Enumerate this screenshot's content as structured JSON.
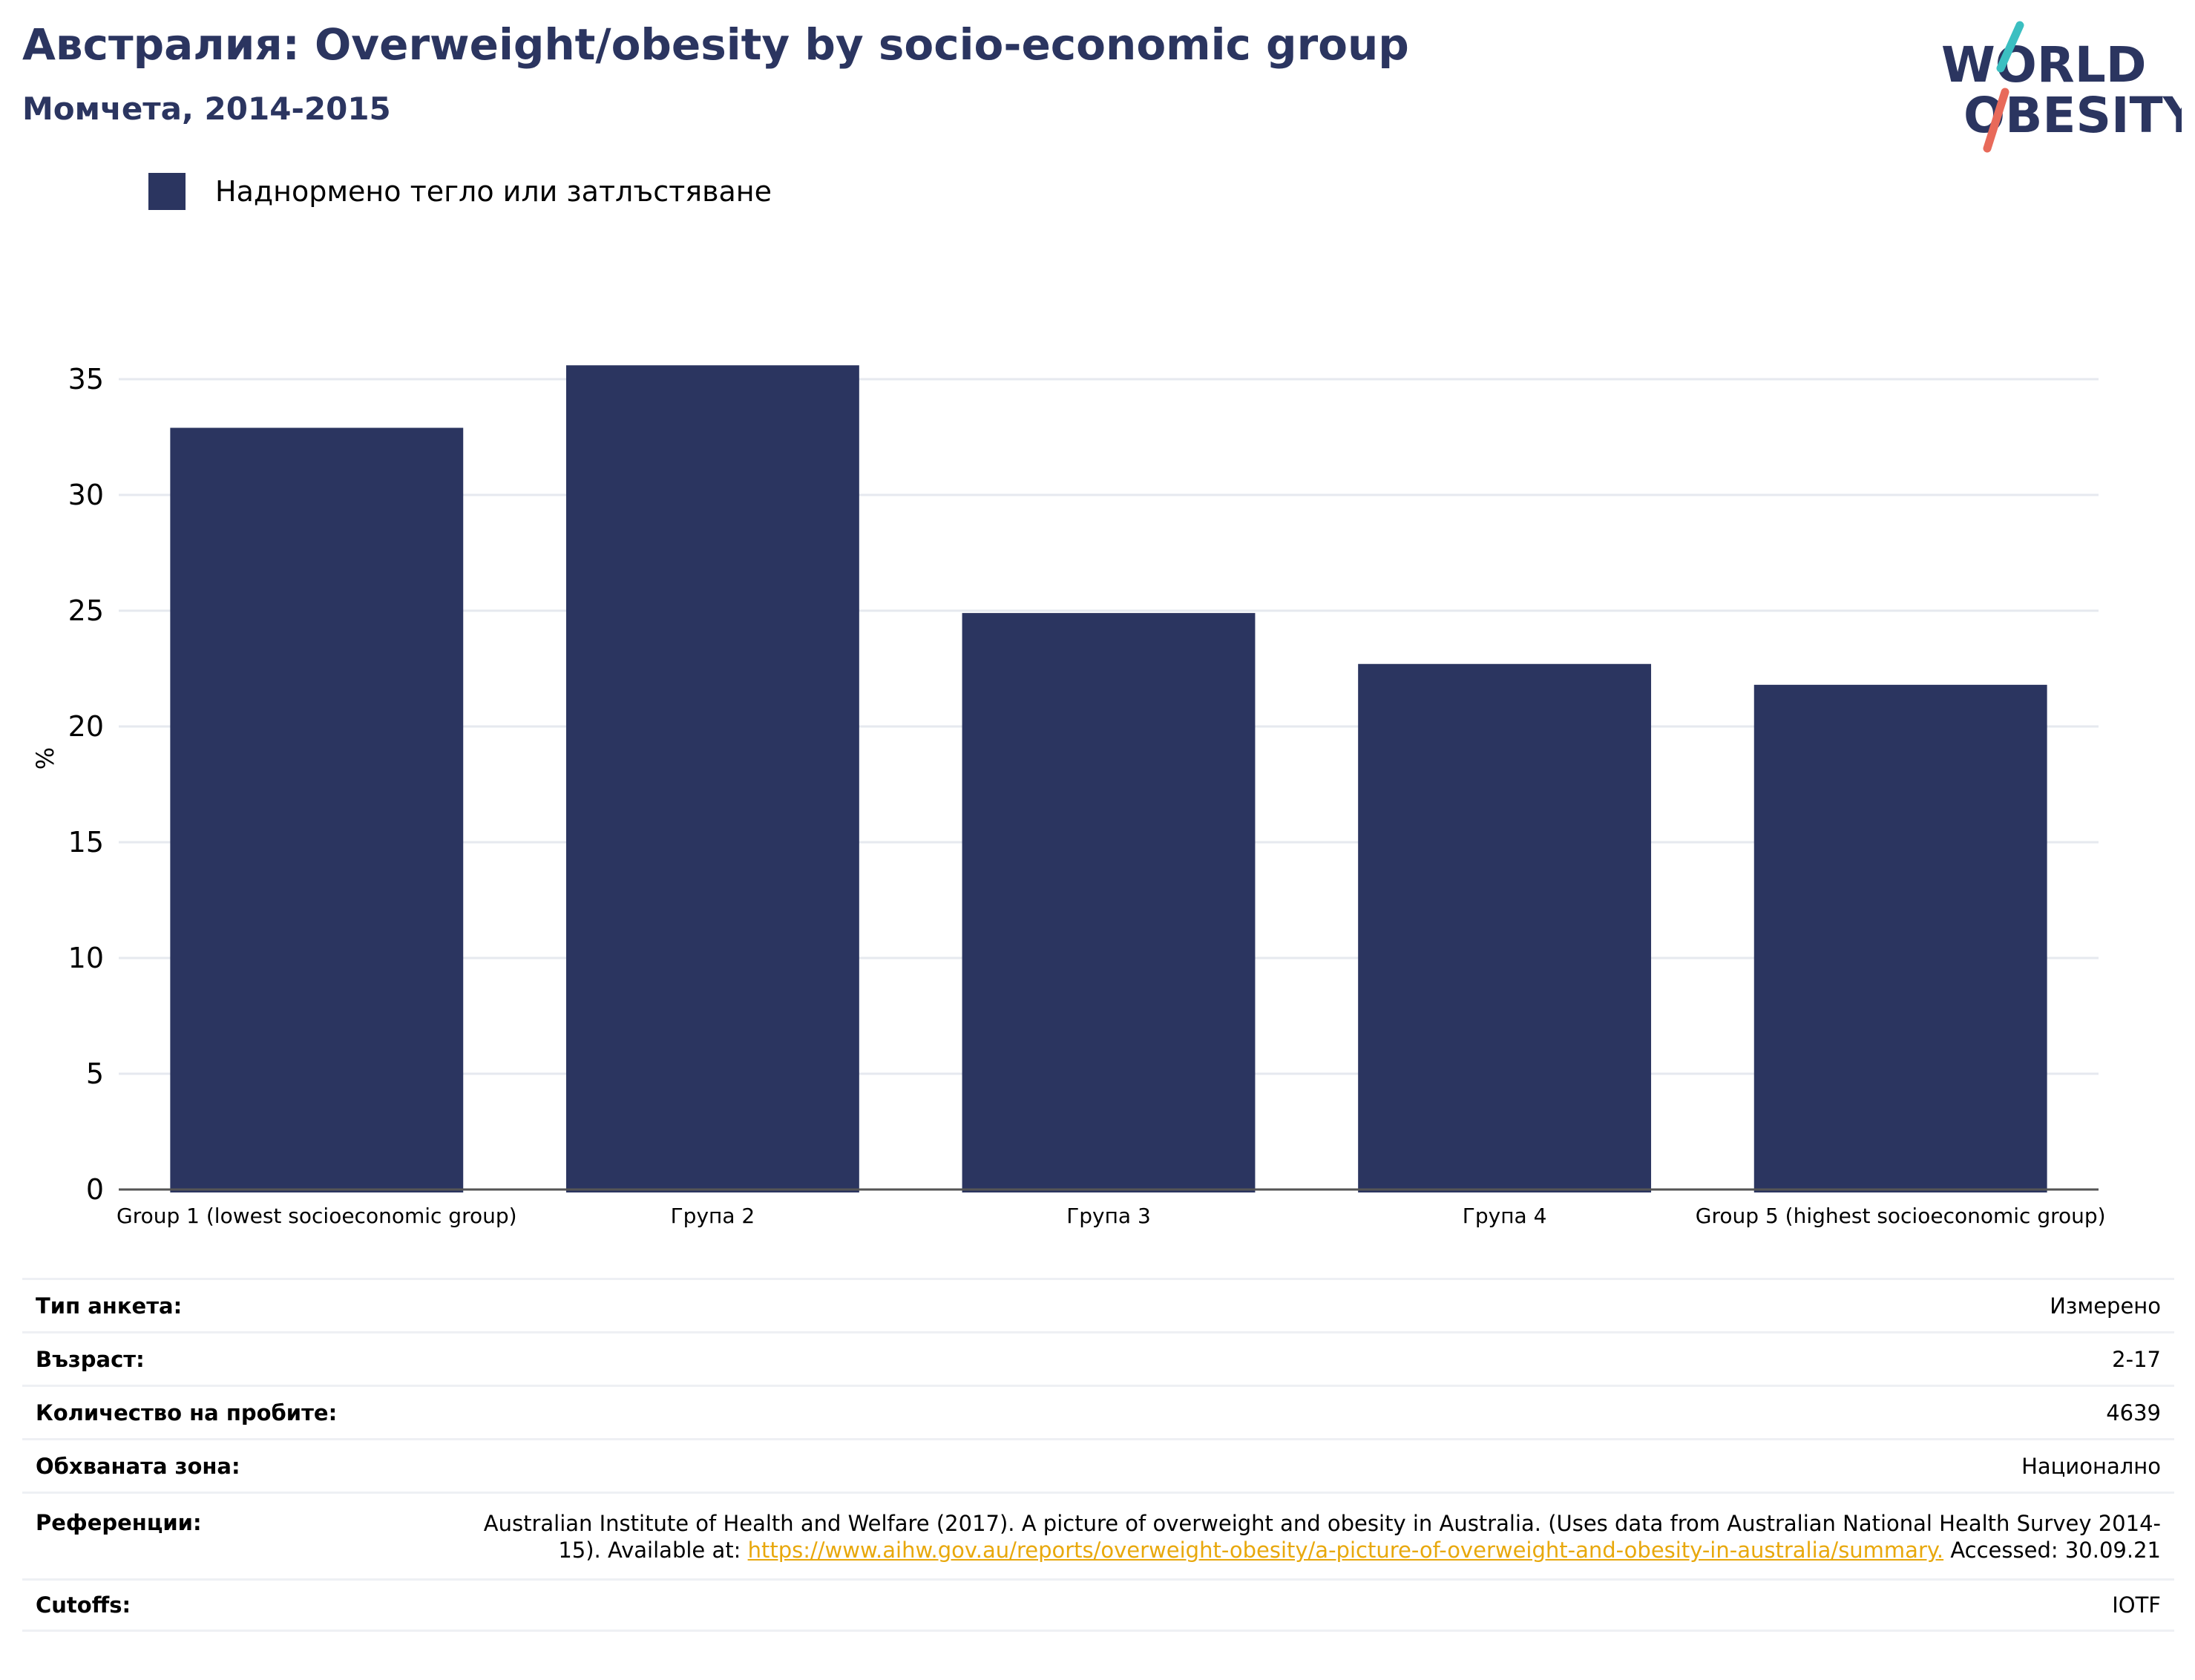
{
  "header": {
    "title": "Австралия: Overweight/obesity by socio-economic group",
    "subtitle": "Момчета, 2014-2015"
  },
  "logo": {
    "line1": "WORLD",
    "line2": "OBESITY"
  },
  "colors": {
    "bar": "#2b3560",
    "grid": "#e6e9ef",
    "axis": "#555555",
    "link": "#e8a80c",
    "logo_teal": "#3bbfc1",
    "logo_coral": "#e86a5a"
  },
  "chart_data": {
    "type": "bar",
    "categories": [
      "Group 1 (lowest socioeconomic group)",
      "Група 2",
      "Група 3",
      "Група 4",
      "Group 5 (highest socioeconomic group)"
    ],
    "series": [
      {
        "name": "Наднормено тегло или затлъстяване",
        "values": [
          32.9,
          35.6,
          24.9,
          22.7,
          21.8
        ]
      }
    ],
    "ylabel": "%",
    "ylim": [
      0,
      35
    ],
    "yticks": [
      0,
      5,
      10,
      15,
      20,
      25,
      30,
      35
    ],
    "grid": true,
    "legend": "top-left"
  },
  "details": [
    {
      "label": "Тип анкета:",
      "value": "Измерено"
    },
    {
      "label": "Възраст:",
      "value": "2-17"
    },
    {
      "label": "Количество на пробите:",
      "value": "4639"
    },
    {
      "label": "Обхваната зона:",
      "value": "Национално"
    },
    {
      "label": "Референции:",
      "value_pre": "Australian Institute of Health and Welfare (2017). A picture of overweight and obesity in Australia. (Uses data from Australian National Health Survey 2014-15). Available at: ",
      "link": "https://www.aihw.gov.au/reports/overweight-obesity/a-picture-of-overweight-and-obesity-in-australia/summary.",
      "value_post": " Accessed: 30.09.21"
    },
    {
      "label": "Cutoffs:",
      "value": "IOTF"
    }
  ]
}
